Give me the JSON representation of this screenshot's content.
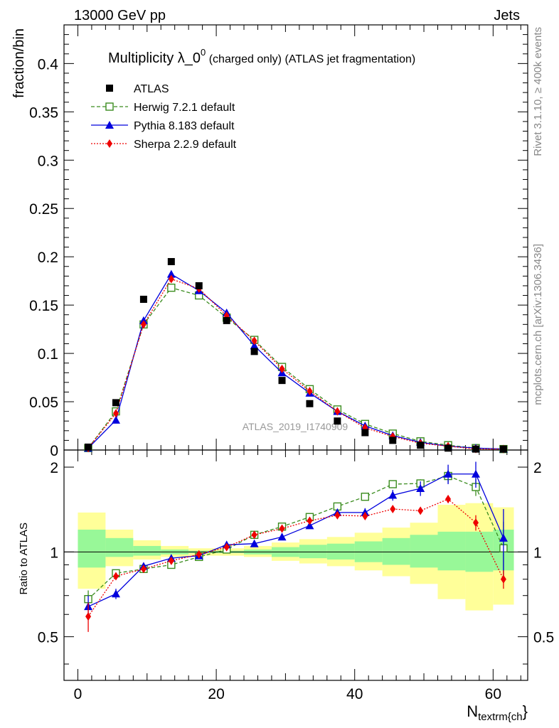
{
  "header": {
    "left": "13000 GeV pp",
    "right": "Jets"
  },
  "title": {
    "main": "Multiplicity λ_0",
    "sup": "0",
    "rest": " (charged only) (ATLAS jet fragmentation)"
  },
  "side_labels": {
    "rivet": "Rivet 3.1.10, ≥ 400k events",
    "mcplots": "mcplots.cern.ch [arXiv:1306.3436]"
  },
  "watermark": "ATLAS_2019_I1740909",
  "colors": {
    "atlas": "#000000",
    "herwig": "#3a8c1e",
    "pythia": "#0000dd",
    "sherpa": "#ee0000",
    "band_inner": "#98f898",
    "band_outer": "#ffff99"
  },
  "chart_data": {
    "type": "line",
    "title": "Multiplicity λ_0^0 (charged only) (ATLAS jet fragmentation)",
    "xlabel": "N_textrm{ch}",
    "ylabel": "fraction/bin",
    "ratio_ylabel": "Ratio to ATLAS",
    "xlim": [
      -2,
      65
    ],
    "ylim": [
      0,
      0.44
    ],
    "ratio_ylim": [
      0.35,
      2.3
    ],
    "x_ticks": [
      0,
      20,
      40,
      60
    ],
    "y_ticks": [
      0,
      0.05,
      0.1,
      0.15,
      0.2,
      0.25,
      0.3,
      0.35,
      0.4
    ],
    "y_tick_labels": [
      "0",
      "0.05",
      "0.1",
      "0.15",
      "0.2",
      "0.25",
      "0.3",
      "0.35",
      "0.4"
    ],
    "ratio_ticks": [
      0.5,
      1,
      2
    ],
    "ratio_tick_labels": [
      "0.5",
      "1",
      "2"
    ],
    "x": [
      1.5,
      5.5,
      9.5,
      13.5,
      17.5,
      21.5,
      25.5,
      29.5,
      33.5,
      37.5,
      41.5,
      45.5,
      49.5,
      53.5,
      57.5,
      61.5
    ],
    "bin_edges": [
      0,
      4,
      8,
      12,
      16,
      20,
      24,
      28,
      32,
      36,
      40,
      44,
      48,
      52,
      56,
      60,
      63
    ],
    "series": [
      {
        "name": "ATLAS",
        "marker": "square",
        "values": [
          0.003,
          0.049,
          0.156,
          0.195,
          0.17,
          0.134,
          0.102,
          0.072,
          0.048,
          0.03,
          0.018,
          0.01,
          0.005,
          0.002,
          0.001,
          0.001
        ],
        "ratio": [
          1,
          1,
          1,
          1,
          1,
          1,
          1,
          1,
          1,
          1,
          1,
          1,
          1,
          1,
          1,
          1
        ]
      },
      {
        "name": "Herwig 7.2.1 default",
        "marker": "open-square",
        "line": "dashed",
        "values": [
          0.002,
          0.04,
          0.13,
          0.168,
          0.16,
          0.137,
          0.114,
          0.086,
          0.063,
          0.042,
          0.027,
          0.017,
          0.009,
          0.005,
          0.002,
          0.001
        ],
        "ratio": [
          0.68,
          0.84,
          0.87,
          0.9,
          0.96,
          1.02,
          1.15,
          1.23,
          1.33,
          1.45,
          1.57,
          1.74,
          1.75,
          1.86,
          1.7,
          1.03
        ],
        "ratio_err": [
          0.05,
          0,
          0,
          0,
          0,
          0,
          0,
          0,
          0,
          0,
          0,
          0,
          0.06,
          0.1,
          0.12,
          0.25
        ]
      },
      {
        "name": "Pythia 8.183 default",
        "marker": "triangle",
        "line": "solid",
        "values": [
          0.002,
          0.031,
          0.134,
          0.182,
          0.165,
          0.142,
          0.108,
          0.08,
          0.059,
          0.04,
          0.025,
          0.015,
          0.008,
          0.004,
          0.002,
          0.001
        ],
        "ratio": [
          0.64,
          0.71,
          0.89,
          0.95,
          0.97,
          1.06,
          1.07,
          1.13,
          1.24,
          1.38,
          1.38,
          1.59,
          1.68,
          1.89,
          1.89,
          1.12
        ],
        "ratio_err": [
          0.06,
          0.03,
          0,
          0,
          0,
          0,
          0,
          0.02,
          0.02,
          0.03,
          0.05,
          0.07,
          0.1,
          0.15,
          0.2,
          0.3
        ]
      },
      {
        "name": "Sherpa 2.2.9 default",
        "marker": "diamond",
        "line": "dotted",
        "values": [
          0.002,
          0.038,
          0.13,
          0.177,
          0.167,
          0.139,
          0.113,
          0.084,
          0.061,
          0.04,
          0.023,
          0.014,
          0.007,
          0.004,
          0.001,
          0.001
        ],
        "ratio": [
          0.59,
          0.82,
          0.87,
          0.93,
          0.98,
          1.04,
          1.15,
          1.21,
          1.29,
          1.35,
          1.34,
          1.42,
          1.4,
          1.54,
          1.27,
          0.8
        ],
        "ratio_err": [
          0.07,
          0,
          0,
          0,
          0,
          0,
          0,
          0,
          0,
          0,
          0.02,
          0.03,
          0.04,
          0.05,
          0.08,
          0.06
        ]
      }
    ],
    "uncertainty_bands": {
      "inner": [
        [
          0.88,
          1.2
        ],
        [
          0.96,
          1.12
        ],
        [
          0.97,
          1.05
        ],
        [
          0.98,
          1.02
        ],
        [
          0.99,
          1.01
        ],
        [
          0.99,
          1.01
        ],
        [
          0.98,
          1.02
        ],
        [
          0.96,
          1.04
        ],
        [
          0.95,
          1.06
        ],
        [
          0.94,
          1.07
        ],
        [
          0.92,
          1.09
        ],
        [
          0.9,
          1.12
        ],
        [
          0.88,
          1.15
        ],
        [
          0.86,
          1.18
        ],
        [
          0.85,
          1.18
        ],
        [
          0.86,
          1.2
        ]
      ],
      "outer": [
        [
          0.74,
          1.38
        ],
        [
          0.89,
          1.2
        ],
        [
          0.94,
          1.1
        ],
        [
          0.96,
          1.05
        ],
        [
          0.97,
          1.03
        ],
        [
          0.97,
          1.03
        ],
        [
          0.96,
          1.05
        ],
        [
          0.93,
          1.08
        ],
        [
          0.91,
          1.11
        ],
        [
          0.89,
          1.13
        ],
        [
          0.86,
          1.17
        ],
        [
          0.82,
          1.22
        ],
        [
          0.77,
          1.27
        ],
        [
          0.68,
          1.47
        ],
        [
          0.62,
          1.49
        ],
        [
          0.65,
          1.44
        ]
      ]
    }
  }
}
